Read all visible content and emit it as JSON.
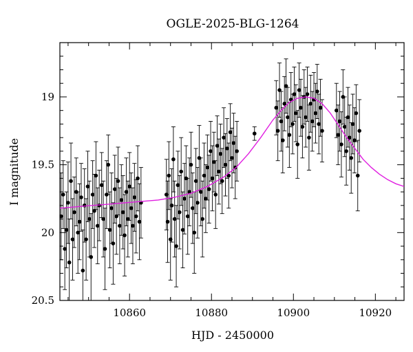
{
  "chart_data": {
    "type": "scatter",
    "title": "OGLE-2025-BLG-1264",
    "xlabel": "HJD - 2450000",
    "ylabel": "I magnitude",
    "xlim": [
      10843,
      10927
    ],
    "ylim": [
      20.5,
      18.6
    ],
    "y_inverted": true,
    "x_ticks": [
      10860,
      10880,
      10900,
      10920
    ],
    "x_tick_labels": [
      "10860",
      "10880",
      "10900",
      "10920"
    ],
    "y_ticks": [
      19,
      19.5,
      20,
      20.5
    ],
    "y_tick_labels": [
      "19",
      "19.5",
      "20",
      "20.5"
    ],
    "grid": false,
    "legend": "none",
    "colors": {
      "data": "#000000",
      "model": "#e01ee0"
    },
    "series": [
      {
        "kind": "observations",
        "point_style": "filled circles with vertical error bars",
        "points": [
          {
            "x": 10843.3,
            "y": 19.88,
            "err": 0.32
          },
          {
            "x": 10843.8,
            "y": 19.72,
            "err": 0.25
          },
          {
            "x": 10844.2,
            "y": 20.12,
            "err": 0.3
          },
          {
            "x": 10844.6,
            "y": 19.98,
            "err": 0.28
          },
          {
            "x": 10845.0,
            "y": 19.78,
            "err": 0.3
          },
          {
            "x": 10845.3,
            "y": 20.22,
            "err": 0.32
          },
          {
            "x": 10845.7,
            "y": 19.62,
            "err": 0.28
          },
          {
            "x": 10846.1,
            "y": 20.05,
            "err": 0.3
          },
          {
            "x": 10846.5,
            "y": 19.85,
            "err": 0.26
          },
          {
            "x": 10847.0,
            "y": 19.7,
            "err": 0.25
          },
          {
            "x": 10847.4,
            "y": 20.0,
            "err": 0.3
          },
          {
            "x": 10847.8,
            "y": 19.92,
            "err": 0.28
          },
          {
            "x": 10848.2,
            "y": 19.74,
            "err": 0.25
          },
          {
            "x": 10848.6,
            "y": 20.28,
            "err": 0.3
          },
          {
            "x": 10849.0,
            "y": 19.8,
            "err": 0.27
          },
          {
            "x": 10849.4,
            "y": 20.05,
            "err": 0.3
          },
          {
            "x": 10849.8,
            "y": 19.66,
            "err": 0.26
          },
          {
            "x": 10850.2,
            "y": 19.9,
            "err": 0.28
          },
          {
            "x": 10850.6,
            "y": 20.18,
            "err": 0.32
          },
          {
            "x": 10851.0,
            "y": 19.72,
            "err": 0.25
          },
          {
            "x": 10851.4,
            "y": 19.84,
            "err": 0.27
          },
          {
            "x": 10851.8,
            "y": 19.58,
            "err": 0.25
          },
          {
            "x": 10852.2,
            "y": 19.95,
            "err": 0.28
          },
          {
            "x": 10852.6,
            "y": 19.8,
            "err": 0.26
          },
          {
            "x": 10853.2,
            "y": 19.65,
            "err": 0.24
          },
          {
            "x": 10853.6,
            "y": 19.9,
            "err": 0.28
          },
          {
            "x": 10854.0,
            "y": 20.12,
            "err": 0.3
          },
          {
            "x": 10854.4,
            "y": 19.72,
            "err": 0.25
          },
          {
            "x": 10854.8,
            "y": 19.5,
            "err": 0.22
          },
          {
            "x": 10855.2,
            "y": 19.98,
            "err": 0.28
          },
          {
            "x": 10855.6,
            "y": 19.82,
            "err": 0.26
          },
          {
            "x": 10856.0,
            "y": 20.08,
            "err": 0.3
          },
          {
            "x": 10856.4,
            "y": 19.68,
            "err": 0.25
          },
          {
            "x": 10856.8,
            "y": 19.88,
            "err": 0.28
          },
          {
            "x": 10857.2,
            "y": 19.62,
            "err": 0.25
          },
          {
            "x": 10857.6,
            "y": 19.95,
            "err": 0.28
          },
          {
            "x": 10858.0,
            "y": 19.76,
            "err": 0.26
          },
          {
            "x": 10858.4,
            "y": 19.85,
            "err": 0.27
          },
          {
            "x": 10858.8,
            "y": 20.02,
            "err": 0.3
          },
          {
            "x": 10859.2,
            "y": 19.7,
            "err": 0.25
          },
          {
            "x": 10859.6,
            "y": 19.9,
            "err": 0.28
          },
          {
            "x": 10860.0,
            "y": 19.66,
            "err": 0.25
          },
          {
            "x": 10860.4,
            "y": 19.82,
            "err": 0.26
          },
          {
            "x": 10860.8,
            "y": 19.95,
            "err": 0.28
          },
          {
            "x": 10861.2,
            "y": 19.74,
            "err": 0.25
          },
          {
            "x": 10861.6,
            "y": 19.88,
            "err": 0.27
          },
          {
            "x": 10862.0,
            "y": 19.6,
            "err": 0.24
          },
          {
            "x": 10862.4,
            "y": 19.92,
            "err": 0.28
          },
          {
            "x": 10862.8,
            "y": 19.78,
            "err": 0.26
          },
          {
            "x": 10869.0,
            "y": 19.72,
            "err": 0.26
          },
          {
            "x": 10869.3,
            "y": 19.92,
            "err": 0.3
          },
          {
            "x": 10869.6,
            "y": 19.58,
            "err": 0.25
          },
          {
            "x": 10870.0,
            "y": 20.05,
            "err": 0.3
          },
          {
            "x": 10870.3,
            "y": 19.8,
            "err": 0.27
          },
          {
            "x": 10870.7,
            "y": 19.46,
            "err": 0.24
          },
          {
            "x": 10871.0,
            "y": 19.9,
            "err": 0.28
          },
          {
            "x": 10871.4,
            "y": 20.1,
            "err": 0.3
          },
          {
            "x": 10871.8,
            "y": 19.65,
            "err": 0.25
          },
          {
            "x": 10872.2,
            "y": 19.85,
            "err": 0.27
          },
          {
            "x": 10872.6,
            "y": 19.55,
            "err": 0.25
          },
          {
            "x": 10873.0,
            "y": 19.98,
            "err": 0.28
          },
          {
            "x": 10873.4,
            "y": 19.75,
            "err": 0.26
          },
          {
            "x": 10873.8,
            "y": 19.6,
            "err": 0.24
          },
          {
            "x": 10874.2,
            "y": 19.88,
            "err": 0.28
          },
          {
            "x": 10874.6,
            "y": 19.7,
            "err": 0.25
          },
          {
            "x": 10875.0,
            "y": 19.5,
            "err": 0.24
          },
          {
            "x": 10875.4,
            "y": 19.82,
            "err": 0.26
          },
          {
            "x": 10875.8,
            "y": 20.0,
            "err": 0.3
          },
          {
            "x": 10876.2,
            "y": 19.62,
            "err": 0.24
          },
          {
            "x": 10876.6,
            "y": 19.78,
            "err": 0.26
          },
          {
            "x": 10877.0,
            "y": 19.45,
            "err": 0.24
          },
          {
            "x": 10877.4,
            "y": 19.7,
            "err": 0.25
          },
          {
            "x": 10877.8,
            "y": 19.9,
            "err": 0.28
          },
          {
            "x": 10878.2,
            "y": 19.58,
            "err": 0.24
          },
          {
            "x": 10878.6,
            "y": 19.75,
            "err": 0.25
          },
          {
            "x": 10879.0,
            "y": 19.52,
            "err": 0.24
          },
          {
            "x": 10879.4,
            "y": 19.68,
            "err": 0.25
          },
          {
            "x": 10879.8,
            "y": 19.4,
            "err": 0.22
          },
          {
            "x": 10880.2,
            "y": 19.6,
            "err": 0.24
          },
          {
            "x": 10880.6,
            "y": 19.48,
            "err": 0.22
          },
          {
            "x": 10881.0,
            "y": 19.72,
            "err": 0.25
          },
          {
            "x": 10881.4,
            "y": 19.36,
            "err": 0.22
          },
          {
            "x": 10881.8,
            "y": 19.55,
            "err": 0.24
          },
          {
            "x": 10882.2,
            "y": 19.42,
            "err": 0.22
          },
          {
            "x": 10882.6,
            "y": 19.62,
            "err": 0.24
          },
          {
            "x": 10883.0,
            "y": 19.3,
            "err": 0.22
          },
          {
            "x": 10883.4,
            "y": 19.5,
            "err": 0.23
          },
          {
            "x": 10883.8,
            "y": 19.38,
            "err": 0.22
          },
          {
            "x": 10884.2,
            "y": 19.58,
            "err": 0.24
          },
          {
            "x": 10884.6,
            "y": 19.26,
            "err": 0.21
          },
          {
            "x": 10885.0,
            "y": 19.45,
            "err": 0.22
          },
          {
            "x": 10885.4,
            "y": 19.34,
            "err": 0.22
          },
          {
            "x": 10885.8,
            "y": 19.52,
            "err": 0.23
          },
          {
            "x": 10886.2,
            "y": 19.4,
            "err": 0.22
          },
          {
            "x": 10890.5,
            "y": 19.27,
            "err": 0.05
          },
          {
            "x": 10895.8,
            "y": 19.08,
            "err": 0.2
          },
          {
            "x": 10896.2,
            "y": 19.25,
            "err": 0.22
          },
          {
            "x": 10896.6,
            "y": 18.95,
            "err": 0.2
          },
          {
            "x": 10897.0,
            "y": 19.18,
            "err": 0.22
          },
          {
            "x": 10897.4,
            "y": 19.32,
            "err": 0.24
          },
          {
            "x": 10897.8,
            "y": 19.05,
            "err": 0.2
          },
          {
            "x": 10898.2,
            "y": 18.92,
            "err": 0.2
          },
          {
            "x": 10898.6,
            "y": 19.15,
            "err": 0.22
          },
          {
            "x": 10899.0,
            "y": 19.28,
            "err": 0.24
          },
          {
            "x": 10899.4,
            "y": 19.02,
            "err": 0.2
          },
          {
            "x": 10899.8,
            "y": 19.2,
            "err": 0.22
          },
          {
            "x": 10900.2,
            "y": 18.98,
            "err": 0.2
          },
          {
            "x": 10900.6,
            "y": 19.12,
            "err": 0.21
          },
          {
            "x": 10901.0,
            "y": 19.35,
            "err": 0.25
          },
          {
            "x": 10901.4,
            "y": 18.95,
            "err": 0.2
          },
          {
            "x": 10901.8,
            "y": 19.08,
            "err": 0.21
          },
          {
            "x": 10902.2,
            "y": 19.22,
            "err": 0.23
          },
          {
            "x": 10902.6,
            "y": 19.0,
            "err": 0.2
          },
          {
            "x": 10903.0,
            "y": 19.15,
            "err": 0.22
          },
          {
            "x": 10903.4,
            "y": 18.98,
            "err": 0.2
          },
          {
            "x": 10903.8,
            "y": 19.3,
            "err": 0.24
          },
          {
            "x": 10904.2,
            "y": 19.05,
            "err": 0.21
          },
          {
            "x": 10904.6,
            "y": 19.18,
            "err": 0.22
          },
          {
            "x": 10905.0,
            "y": 19.02,
            "err": 0.2
          },
          {
            "x": 10905.4,
            "y": 19.12,
            "err": 0.22
          },
          {
            "x": 10905.8,
            "y": 18.96,
            "err": 0.2
          },
          {
            "x": 10906.2,
            "y": 19.2,
            "err": 0.22
          },
          {
            "x": 10906.6,
            "y": 19.08,
            "err": 0.21
          },
          {
            "x": 10907.0,
            "y": 19.25,
            "err": 0.23
          },
          {
            "x": 10910.5,
            "y": 19.1,
            "err": 0.2
          },
          {
            "x": 10910.9,
            "y": 19.28,
            "err": 0.22
          },
          {
            "x": 10911.3,
            "y": 19.18,
            "err": 0.22
          },
          {
            "x": 10911.7,
            "y": 19.35,
            "err": 0.24
          },
          {
            "x": 10912.1,
            "y": 19.0,
            "err": 0.2
          },
          {
            "x": 10912.5,
            "y": 19.22,
            "err": 0.22
          },
          {
            "x": 10912.9,
            "y": 19.4,
            "err": 0.25
          },
          {
            "x": 10913.3,
            "y": 19.15,
            "err": 0.22
          },
          {
            "x": 10913.7,
            "y": 19.3,
            "err": 0.24
          },
          {
            "x": 10914.1,
            "y": 19.45,
            "err": 0.26
          },
          {
            "x": 10914.5,
            "y": 19.2,
            "err": 0.22
          },
          {
            "x": 10914.9,
            "y": 19.32,
            "err": 0.24
          },
          {
            "x": 10915.3,
            "y": 19.12,
            "err": 0.21
          },
          {
            "x": 10915.7,
            "y": 19.58,
            "err": 0.26
          },
          {
            "x": 10916.1,
            "y": 19.25,
            "err": 0.23
          }
        ]
      },
      {
        "kind": "model",
        "style": "magenta line",
        "x": [
          10843,
          10847,
          10851,
          10855,
          10859,
          10863,
          10867,
          10871,
          10875,
          10879,
          10883,
          10886,
          10889,
          10892,
          10895,
          10897,
          10899,
          10901,
          10903,
          10905,
          10907,
          10909,
          10911,
          10913,
          10915,
          10917,
          10919,
          10921,
          10923,
          10925,
          10927
        ],
        "y": [
          19.82,
          19.81,
          19.8,
          19.79,
          19.78,
          19.77,
          19.76,
          19.74,
          19.71,
          19.66,
          19.59,
          19.52,
          19.42,
          19.3,
          19.17,
          19.1,
          19.04,
          19.01,
          19.0,
          19.01,
          19.05,
          19.12,
          19.21,
          19.3,
          19.38,
          19.46,
          19.52,
          19.57,
          19.61,
          19.64,
          19.66
        ]
      }
    ]
  }
}
